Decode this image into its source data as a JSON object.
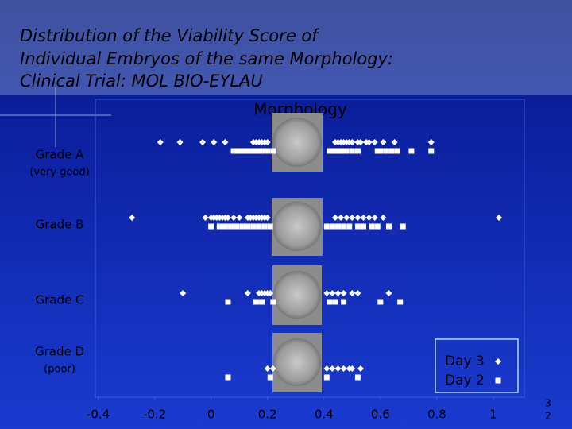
{
  "chart_data": {
    "type": "dot",
    "title": [
      "Distribution of the Viability Score of",
      "Individual Embryos of the same Morphology:",
      "Clinical Trial: MOL BIO-EYLAU"
    ],
    "subtitle": "Morphology",
    "categories": [
      "Grade A",
      "Grade B",
      "Grade C",
      "Grade D"
    ],
    "category_notes": [
      "(very good)",
      null,
      null,
      "(poor)"
    ],
    "series": [
      {
        "name": "Day 3",
        "marker": "diamond",
        "color": "#ffffff",
        "values": [
          [
            -0.18,
            -0.11,
            -0.03,
            0.01,
            0.05,
            0.15,
            0.16,
            0.17,
            0.18,
            0.19,
            0.2,
            0.44,
            0.45,
            0.46,
            0.47,
            0.48,
            0.49,
            0.5,
            0.52,
            0.53,
            0.55,
            0.56,
            0.58,
            0.61,
            0.65,
            0.78
          ],
          [
            -0.28,
            -0.02,
            0,
            0.01,
            0.02,
            0.03,
            0.04,
            0.05,
            0.06,
            0.08,
            0.1,
            0.13,
            0.14,
            0.15,
            0.16,
            0.17,
            0.18,
            0.19,
            0.2,
            0.44,
            0.46,
            0.48,
            0.5,
            0.52,
            0.54,
            0.56,
            0.58,
            0.61,
            1.02
          ],
          [
            -0.1,
            0.13,
            0.17,
            0.18,
            0.19,
            0.2,
            0.21,
            0.41,
            0.43,
            0.45,
            0.47,
            0.5,
            0.52,
            0.63
          ],
          [
            0.2,
            0.22,
            0.41,
            0.43,
            0.45,
            0.47,
            0.49,
            0.5,
            0.53
          ]
        ]
      },
      {
        "name": "Day 2",
        "marker": "square",
        "color": "#ffffff",
        "values": [
          [
            0.08,
            0.09,
            0.1,
            0.11,
            0.12,
            0.13,
            0.14,
            0.15,
            0.16,
            0.17,
            0.18,
            0.2,
            0.22,
            0.42,
            0.43,
            0.44,
            0.45,
            0.46,
            0.47,
            0.48,
            0.5,
            0.52,
            0.59,
            0.6,
            0.62,
            0.64,
            0.66,
            0.71,
            0.78
          ],
          [
            0,
            0.03,
            0.05,
            0.07,
            0.09,
            0.11,
            0.13,
            0.15,
            0.17,
            0.19,
            0.21,
            0.41,
            0.43,
            0.45,
            0.47,
            0.49,
            0.52,
            0.54,
            0.57,
            0.59,
            0.63,
            0.68
          ],
          [
            0.06,
            0.16,
            0.18,
            0.22,
            0.42,
            0.44,
            0.47,
            0.6,
            0.67
          ],
          [
            0.06,
            0.21,
            0.41,
            0.52
          ]
        ]
      }
    ],
    "xlim": [
      -0.41,
      1.11
    ],
    "xticks": [
      -0.4,
      -0.2,
      0,
      0.2,
      0.4,
      0.6,
      0.8,
      1
    ],
    "grid": false,
    "legend": "lower right",
    "slide_number": [
      "3",
      "2"
    ]
  }
}
